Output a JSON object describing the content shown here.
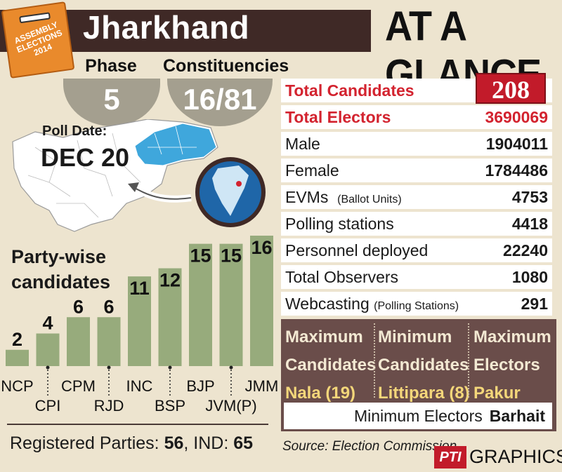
{
  "logo": {
    "text": "ASSEMBLY ELECTIONS 2014"
  },
  "header": {
    "state": "Jharkhand",
    "tagline": "AT A GLANCE"
  },
  "phase": {
    "label": "Phase",
    "value": "5"
  },
  "constituencies": {
    "label": "Constituencies",
    "value": "16/81"
  },
  "poll": {
    "label": "Poll Date:",
    "value": "DEC 20"
  },
  "stats": [
    {
      "label": "Total Candidates",
      "value": "208",
      "highlight": "badge"
    },
    {
      "label": "Total Electors",
      "value": "3690069",
      "highlight": "red"
    },
    {
      "label": "Male",
      "value": "1904011"
    },
    {
      "label": "Female",
      "value": "1784486"
    },
    {
      "label": "EVMs",
      "sub": "(Ballot Units)",
      "value": "4753"
    },
    {
      "label": "Polling stations",
      "value": "4418"
    },
    {
      "label": "Personnel deployed",
      "value": "22240"
    },
    {
      "label": "Total Observers",
      "value": "1080"
    },
    {
      "label": "Webcasting",
      "sub": "(Polling Stations)",
      "value": "291"
    }
  ],
  "extremes": [
    {
      "line1": "Maximum",
      "line2": "Candidates",
      "value": "Nala (19)"
    },
    {
      "line1": "Minimum",
      "line2": "Candidates",
      "value": "Littipara (8)"
    },
    {
      "line1": "Maximum",
      "line2": "Electors",
      "value": "Pakur"
    }
  ],
  "min_electors": {
    "label": "Minimum Electors",
    "value": "Barhait"
  },
  "party_chart_title": {
    "line1": "Party-wise",
    "line2": "candidates"
  },
  "chart_data": {
    "type": "bar",
    "title": "Party-wise candidates",
    "categories": [
      "NCP",
      "CPI",
      "CPM",
      "RJD",
      "INC",
      "BSP",
      "BJP",
      "JVM(P)",
      "JMM"
    ],
    "values": [
      2,
      4,
      6,
      6,
      11,
      12,
      15,
      15,
      16
    ],
    "ylim": [
      0,
      16
    ],
    "grid": false,
    "bar_color": "#97ab7c"
  },
  "footer": {
    "registered_label": "Registered Parties:",
    "registered_value": "56",
    "ind_label": "IND:",
    "ind_value": "65",
    "source": "Source: Election Commission",
    "pti": "PTI",
    "graphics": "GRAPHICS"
  },
  "colors": {
    "background": "#ede4cf",
    "header": "#3f2926",
    "accent_red": "#d3232f",
    "extremes_bg": "#6a4d4a",
    "extremes_value": "#f4d77a",
    "map_highlight": "#3fa7dc"
  }
}
